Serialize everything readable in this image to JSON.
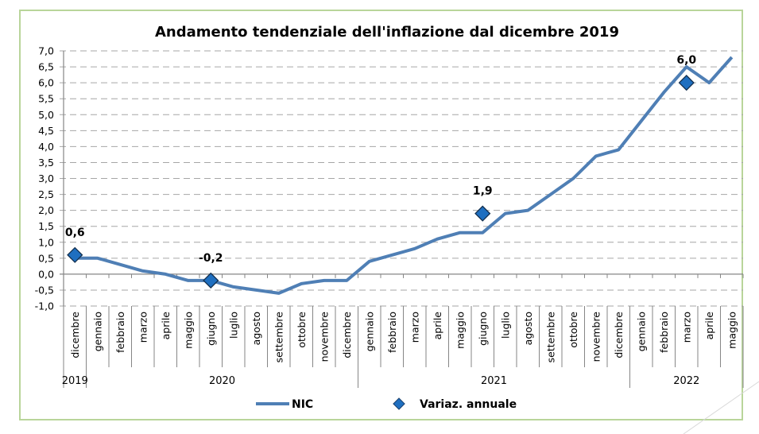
{
  "chart_data": {
    "type": "line",
    "title": "Andamento tendenziale dell'inflazione dal dicembre 2019",
    "xlabel": "",
    "ylabel": "",
    "ylim": [
      -1.0,
      7.0
    ],
    "y_ticks": [
      "7,0",
      "6,5",
      "6,0",
      "5,5",
      "5,0",
      "4,5",
      "4,0",
      "3,5",
      "3,0",
      "2,5",
      "2,0",
      "1,5",
      "1,0",
      "0,5",
      "0,0",
      "-0,5",
      "-1,0"
    ],
    "y_tick_values": [
      7.0,
      6.5,
      6.0,
      5.5,
      5.0,
      4.5,
      4.0,
      3.5,
      3.0,
      2.5,
      2.0,
      1.5,
      1.0,
      0.5,
      0.0,
      -0.5,
      -1.0
    ],
    "grid": true,
    "legend_position": "bottom",
    "categories": [
      "dicembre",
      "gennaio",
      "febbraio",
      "marzo",
      "aprile",
      "maggio",
      "giugno",
      "luglio",
      "agosto",
      "settembre",
      "ottobre",
      "novembre",
      "dicembre",
      "gennaio",
      "febbraio",
      "marzo",
      "aprile",
      "maggio",
      "giugno",
      "luglio",
      "agosto",
      "settembre",
      "ottobre",
      "novembre",
      "dicembre",
      "gennaio",
      "febbraio",
      "marzo",
      "aprile",
      "maggio"
    ],
    "year_groups": [
      {
        "label": "2019",
        "start": 0,
        "end": 0
      },
      {
        "label": "2020",
        "start": 1,
        "end": 12
      },
      {
        "label": "2021",
        "start": 13,
        "end": 24
      },
      {
        "label": "2022",
        "start": 25,
        "end": 29
      }
    ],
    "series": [
      {
        "name": "NIC",
        "type": "line",
        "color": "#4f7fb5",
        "values": [
          0.5,
          0.5,
          0.3,
          0.1,
          0.0,
          -0.2,
          -0.2,
          -0.4,
          -0.5,
          -0.6,
          -0.3,
          -0.2,
          -0.2,
          0.4,
          0.6,
          0.8,
          1.1,
          1.3,
          1.3,
          1.9,
          2.0,
          2.5,
          3.0,
          3.7,
          3.9,
          4.8,
          5.7,
          6.5,
          6.0,
          6.8
        ]
      },
      {
        "name": "Variaz. annuale",
        "type": "scatter",
        "color": "#1f6fc0",
        "points": [
          {
            "index": 0,
            "value": 0.6,
            "label": "0,6"
          },
          {
            "index": 6,
            "value": -0.2,
            "label": "-0,2"
          },
          {
            "index": 18,
            "value": 1.9,
            "label": "1,9"
          },
          {
            "index": 27,
            "value": 6.0,
            "label": "6,0"
          }
        ]
      }
    ]
  }
}
